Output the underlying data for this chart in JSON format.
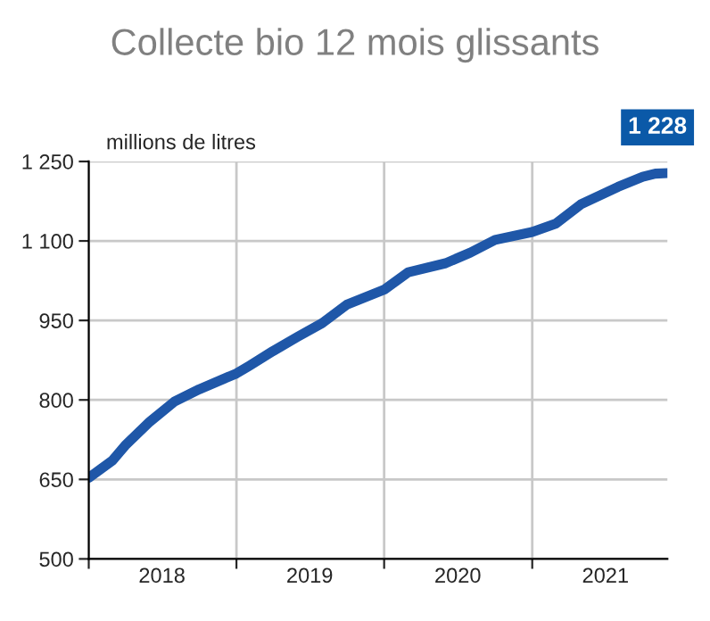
{
  "chart_data": {
    "type": "line",
    "title": "Collecte bio 12 mois glissants",
    "ylabel": "millions de litres",
    "x": [
      "2018-01",
      "2018-03",
      "2018-04",
      "2018-06",
      "2018-08",
      "2018-10",
      "2019-01",
      "2019-02",
      "2019-04",
      "2019-06",
      "2019-08",
      "2019-10",
      "2020-01",
      "2020-03",
      "2020-06",
      "2020-08",
      "2020-10",
      "2021-01",
      "2021-03",
      "2021-05",
      "2021-08",
      "2021-10",
      "2021-11",
      "2021-12"
    ],
    "series": [
      {
        "color": "#1f57a8",
        "values": [
          653,
          686,
          714,
          759,
          797,
          820,
          850,
          864,
          892,
          919,
          945,
          980,
          1008,
          1041,
          1058,
          1078,
          1102,
          1117,
          1133,
          1169,
          1202,
          1221,
          1227,
          1228
        ]
      }
    ],
    "annotations": [
      {
        "text": "1 228",
        "x": "2021-12",
        "y": 1228
      }
    ],
    "xlim": [
      "2018-01",
      "2021-12"
    ],
    "xticks": [
      {
        "value": "2018-01",
        "label": null
      },
      {
        "value": "2018-07",
        "label": "2018"
      },
      {
        "value": "2019-01",
        "label": null
      },
      {
        "value": "2019-07",
        "label": "2019"
      },
      {
        "value": "2020-01",
        "label": null
      },
      {
        "value": "2020-07",
        "label": "2020"
      },
      {
        "value": "2021-01",
        "label": null
      },
      {
        "value": "2021-07",
        "label": "2021"
      }
    ],
    "ylim": [
      500,
      1250
    ],
    "yticks": [
      500,
      650,
      800,
      950,
      {
        "value": 1100,
        "label": "1 100"
      },
      {
        "value": 1250,
        "label": "1 250"
      }
    ],
    "grid": true,
    "line_style": "solid",
    "marker": "none"
  }
}
